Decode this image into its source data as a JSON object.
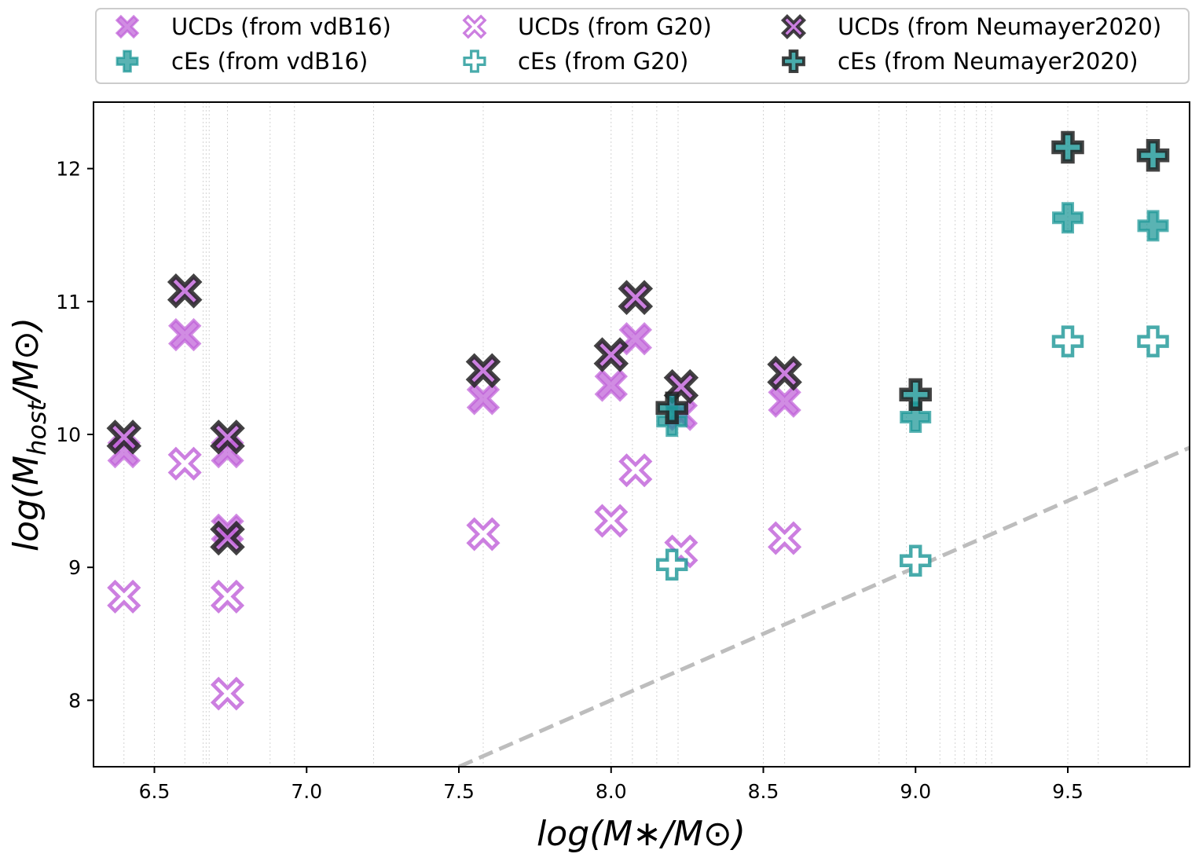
{
  "chart_data": {
    "type": "scatter",
    "xlabel": "log(M∗/M⊙)",
    "ylabel_parts": [
      "log(M",
      "host",
      "/M⊙)"
    ],
    "xlim": [
      6.3,
      9.9
    ],
    "ylim": [
      7.5,
      12.5
    ],
    "xticks": [
      "6.5",
      "7.0",
      "7.5",
      "8.0",
      "8.5",
      "9.0",
      "9.5"
    ],
    "yticks": [
      "8",
      "9",
      "10",
      "11",
      "12"
    ],
    "legend_location": "top, outside plot",
    "colors": {
      "ucd": "#bf5fd8",
      "ce": "#1a9696",
      "edge_dark": "#222222",
      "grid": "#d4d4d4",
      "line": "#bdbdbd"
    },
    "grid_vlines": [
      6.4,
      6.5,
      6.6,
      6.66,
      6.67,
      6.68,
      6.74,
      6.88,
      6.96,
      7.22,
      7.58,
      8.0,
      8.07,
      8.15,
      8.22,
      8.5,
      8.57,
      8.88,
      8.97,
      9.08,
      9.13,
      9.16,
      9.2,
      9.23,
      9.25,
      9.5,
      9.6,
      9.76
    ],
    "reference_line": {
      "style": "dashed",
      "points": [
        [
          7.5,
          7.5
        ],
        [
          9.9,
          9.9
        ]
      ]
    },
    "legend": [
      {
        "label": "UCDs (from vdB16)",
        "series": "ucd_vdb16"
      },
      {
        "label": "UCDs (from G20)",
        "series": "ucd_g20"
      },
      {
        "label": "UCDs (from Neumayer2020)",
        "series": "ucd_n20"
      },
      {
        "label": "cEs (from vdB16)",
        "series": "ce_vdb16"
      },
      {
        "label": "cEs (from G20)",
        "series": "ce_g20"
      },
      {
        "label": "cEs (from Neumayer2020)",
        "series": "ce_n20"
      }
    ],
    "series": [
      {
        "name": "ucd_vdb16",
        "marker": "x",
        "style": "filled",
        "points": [
          [
            6.4,
            9.87
          ],
          [
            6.6,
            10.75
          ],
          [
            6.74,
            9.87
          ],
          [
            6.74,
            9.28
          ],
          [
            7.58,
            10.27
          ],
          [
            8.0,
            10.37
          ],
          [
            8.08,
            10.72
          ],
          [
            8.23,
            10.15
          ],
          [
            8.57,
            10.25
          ]
        ]
      },
      {
        "name": "ucd_g20",
        "marker": "x",
        "style": "open",
        "points": [
          [
            6.4,
            8.78
          ],
          [
            6.6,
            9.78
          ],
          [
            6.74,
            8.78
          ],
          [
            6.74,
            8.05
          ],
          [
            7.58,
            9.25
          ],
          [
            8.0,
            9.35
          ],
          [
            8.08,
            9.73
          ],
          [
            8.23,
            9.12
          ],
          [
            8.57,
            9.22
          ]
        ]
      },
      {
        "name": "ucd_n20",
        "marker": "x",
        "style": "dark",
        "points": [
          [
            6.4,
            9.98
          ],
          [
            6.6,
            11.08
          ],
          [
            6.74,
            9.98
          ],
          [
            6.74,
            9.22
          ],
          [
            7.58,
            10.48
          ],
          [
            8.0,
            10.6
          ],
          [
            8.08,
            11.03
          ],
          [
            8.23,
            10.36
          ],
          [
            8.57,
            10.46
          ]
        ]
      },
      {
        "name": "ce_vdb16",
        "marker": "plus",
        "style": "filled",
        "points": [
          [
            8.2,
            10.1
          ],
          [
            9.0,
            10.13
          ],
          [
            9.5,
            11.63
          ],
          [
            9.78,
            11.57
          ]
        ]
      },
      {
        "name": "ce_g20",
        "marker": "plus",
        "style": "open",
        "points": [
          [
            8.2,
            9.02
          ],
          [
            9.0,
            9.05
          ],
          [
            9.5,
            10.7
          ],
          [
            9.78,
            10.7
          ]
        ]
      },
      {
        "name": "ce_n20",
        "marker": "plus",
        "style": "dark",
        "points": [
          [
            8.2,
            10.2
          ],
          [
            9.0,
            10.3
          ],
          [
            9.5,
            12.16
          ],
          [
            9.78,
            12.1
          ]
        ]
      }
    ]
  }
}
